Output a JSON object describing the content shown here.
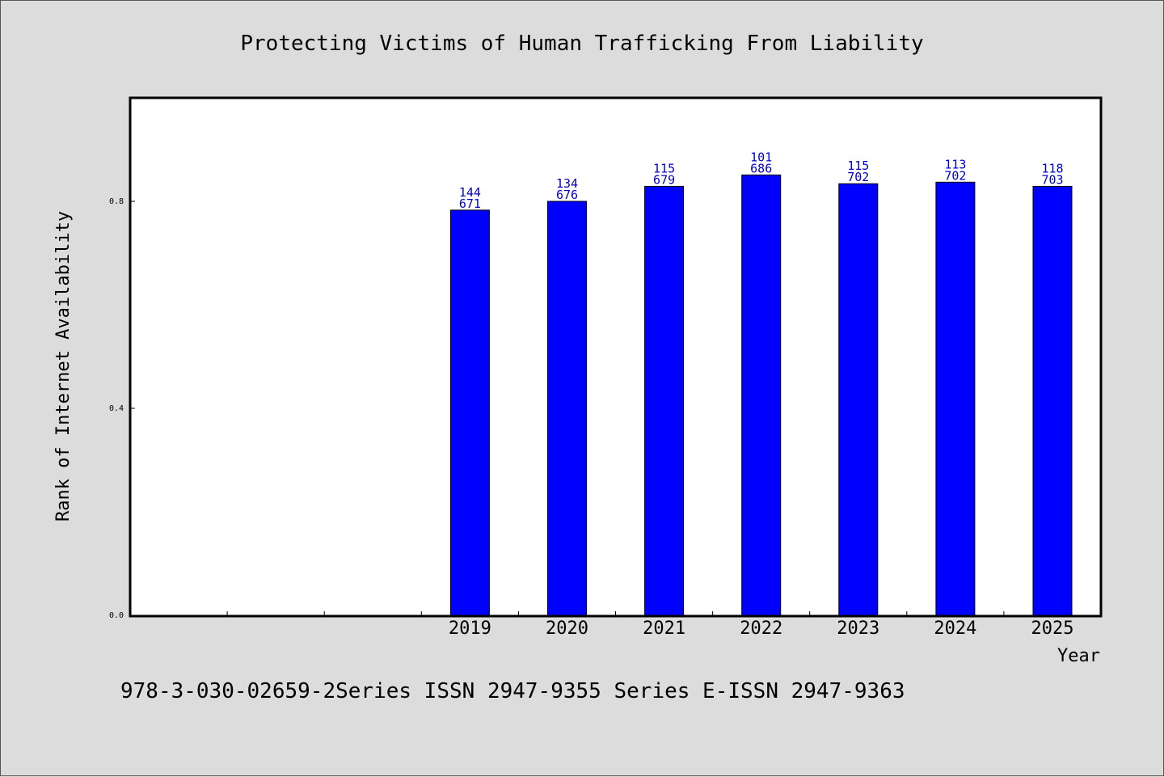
{
  "chart_data": {
    "type": "bar",
    "title": "Protecting Victims of Human Trafficking From Liability",
    "xlabel": "Year",
    "ylabel": "Rank of Internet Availability",
    "categories": [
      "",
      "",
      "",
      "2019",
      "2020",
      "2021",
      "2022",
      "2023",
      "2024",
      "2025"
    ],
    "series": [
      {
        "values": [
          null,
          null,
          null,
          0.783,
          0.8,
          0.829,
          0.851,
          0.834,
          0.837,
          0.829
        ],
        "labels_top": [
          "",
          "",
          "",
          "144",
          "134",
          "115",
          "101",
          "115",
          "113",
          "118"
        ],
        "labels_bottom": [
          "",
          "",
          "",
          "671",
          "676",
          "679",
          "686",
          "702",
          "702",
          "703"
        ]
      }
    ],
    "ylim": [
      0,
      1.0
    ],
    "yticks": [
      "0.0",
      "0.4",
      "0.8"
    ],
    "ytick_values": [
      0.0,
      0.4,
      0.8
    ],
    "grid": false,
    "bar_color": "#0000ff",
    "label_color": "#0000cc"
  },
  "footer": {
    "text": "978-3-030-02659-2Series ISSN 2947-9355 Series E-ISSN 2947-9363"
  }
}
